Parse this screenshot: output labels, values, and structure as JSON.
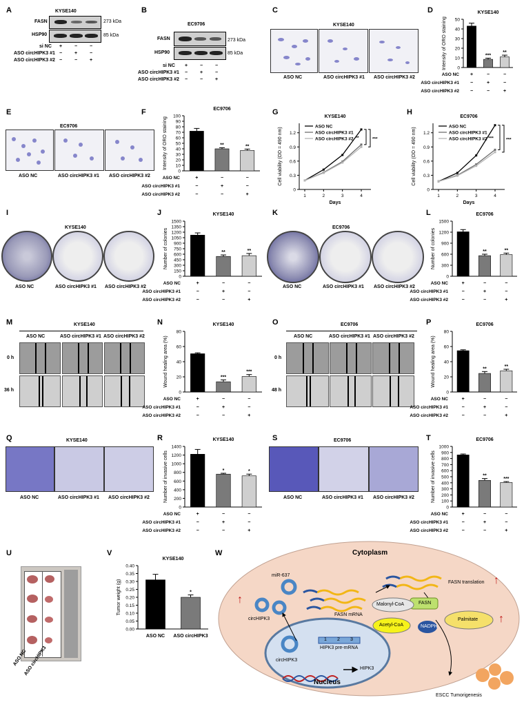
{
  "panels": {
    "A": {
      "letter": "A",
      "cell": "KYSE140",
      "rows": [
        "FASN",
        "HSP90"
      ],
      "kda": [
        "273 kDa",
        "85 kDa"
      ],
      "conds": [
        "si NC",
        "ASO circHIPK3 #1",
        "ASO circHIPK3 #2"
      ],
      "signs": [
        [
          "+",
          "−",
          "−"
        ],
        [
          "−",
          "+",
          "−"
        ],
        [
          "−",
          "−",
          "+"
        ]
      ]
    },
    "B": {
      "letter": "B",
      "cell": "EC9706",
      "rows": [
        "FASN",
        "HSP90"
      ],
      "kda": [
        "273 kDa",
        "85 kDa"
      ],
      "conds": [
        "si NC",
        "ASO circHIPK3 #1",
        "ASO circHIPK3 #2"
      ],
      "signs": [
        [
          "+",
          "−",
          "−"
        ],
        [
          "−",
          "+",
          "−"
        ],
        [
          "−",
          "−",
          "+"
        ]
      ]
    },
    "C": {
      "letter": "C",
      "cell": "KYSE140",
      "captions": [
        "ASO NC",
        "ASO circHIPK3 #1",
        "ASO circHIPK3 #2"
      ]
    },
    "E": {
      "letter": "E",
      "cell": "EC9706",
      "captions": [
        "ASO NC",
        "ASO circHIPK3 #1",
        "ASO circHIPK3 #2"
      ]
    },
    "I": {
      "letter": "I",
      "cell": "KYSE140",
      "captions": [
        "ASO NC",
        "ASO circHIPK3 #1",
        "ASO circHIPK3 #2"
      ]
    },
    "K": {
      "letter": "K",
      "cell": "EC9706",
      "captions": [
        "ASO NC",
        "ASO circHIPK3 #1",
        "ASO circHIPK3 #2"
      ]
    },
    "M": {
      "letter": "M",
      "cell": "KYSE140",
      "cols": [
        "ASO NC",
        "ASO circHIPK3 #1",
        "ASO circHIPK3 #2"
      ],
      "rows": [
        "0 h",
        "36 h"
      ]
    },
    "O": {
      "letter": "O",
      "cell": "EC9706",
      "cols": [
        "ASO NC",
        "ASO circHIPK3 #1",
        "ASO circHIPK3 #2"
      ],
      "rows": [
        "0 h",
        "48 h"
      ]
    },
    "Q": {
      "letter": "Q",
      "cell": "KYSE140",
      "captions": [
        "ASO NC",
        "ASO circHIPK3 #1",
        "ASO circHIPK3 #2"
      ]
    },
    "S": {
      "letter": "S",
      "cell": "EC9706",
      "captions": [
        "ASO NC",
        "ASO circHIPK3 #1",
        "ASO circHIPK3 #2"
      ]
    },
    "U": {
      "letter": "U",
      "captions": [
        "ASO NC",
        "ASO circHIPK3"
      ]
    },
    "W": {
      "letter": "W",
      "cytoplasm": "Cytoplasm",
      "nucleus": "Nucleus",
      "mir": "miR-637",
      "circ_cyto": "circHIPK3",
      "circ_nuc": "circHIPK3",
      "premrna": "HIPK3 pre-mRNA",
      "exons": [
        "1",
        "2",
        "3"
      ],
      "gene": "HIPK3",
      "fasn_mrna": "FASN mRNA",
      "translation": "FASN translation",
      "malonyl": "Malonyl-CoA",
      "fasn": "FASN",
      "acetyl": "Acetyl-CoA",
      "nadph": "NADPH",
      "palmitate": "Palmitate",
      "escc": "ESCC Tumorigenesis",
      "up_arrows": [
        "↑",
        "↑",
        "↑"
      ]
    }
  },
  "chart_data": [
    {
      "id": "D",
      "type": "bar",
      "title": "KYSE140",
      "ylabel": "Intensity of ORO staining",
      "ylim": [
        0,
        50
      ],
      "yticks": [
        0,
        10,
        20,
        30,
        40,
        50
      ],
      "categories": [
        "ASO NC",
        "ASO circHIPK3 #1",
        "ASO circHIPK3 #2"
      ],
      "values": [
        43,
        8.5,
        11
      ],
      "errors": [
        3,
        1.2,
        1.8
      ],
      "sig": [
        "",
        "***",
        "**"
      ],
      "colors": [
        "#000000",
        "#7a7a7a",
        "#cfcfcf"
      ],
      "conds": [
        "ASO NC",
        "ASO circHIPK3 #1",
        "ASO circHIPK3 #2"
      ],
      "signs": [
        [
          "+",
          "−",
          "−"
        ],
        [
          "−",
          "+",
          "−"
        ],
        [
          "−",
          "−",
          "+"
        ]
      ]
    },
    {
      "id": "F",
      "type": "bar",
      "title": "EC9706",
      "ylabel": "Intensity of ORO staining",
      "ylim": [
        0,
        100
      ],
      "yticks": [
        0,
        10,
        20,
        30,
        40,
        50,
        60,
        70,
        80,
        90,
        100
      ],
      "categories": [
        "ASO NC",
        "ASO circHIPK3 #1",
        "ASO circHIPK3 #2"
      ],
      "values": [
        72,
        40,
        37
      ],
      "errors": [
        5,
        2,
        2.5
      ],
      "sig": [
        "",
        "**",
        "**"
      ],
      "colors": [
        "#000000",
        "#7a7a7a",
        "#cfcfcf"
      ],
      "conds": [
        "ASO NC",
        "ASO circHIPK3 #1",
        "ASO circHIPK3 #2"
      ],
      "signs": [
        [
          "+",
          "−",
          "−"
        ],
        [
          "−",
          "+",
          "−"
        ],
        [
          "−",
          "−",
          "+"
        ]
      ]
    },
    {
      "id": "G",
      "type": "line",
      "title": "KYSE140",
      "xlabel": "Days",
      "ylabel": "Cell viability (OD = 490 nm)",
      "ylim": [
        0,
        1.4
      ],
      "yticks": [
        0,
        0.3,
        0.6,
        0.9,
        1.2
      ],
      "x": [
        1,
        2,
        3,
        4
      ],
      "series": [
        {
          "name": "ASO NC",
          "values": [
            0.19,
            0.42,
            0.73,
            1.27
          ],
          "color": "#000000"
        },
        {
          "name": "ASO circHIPK3 #1",
          "values": [
            0.19,
            0.36,
            0.59,
            0.95
          ],
          "color": "#6e6e6e"
        },
        {
          "name": "ASO circHIPK3 #2",
          "values": [
            0.19,
            0.35,
            0.57,
            0.9
          ],
          "color": "#b5b5b5"
        }
      ],
      "sig": [
        "**",
        "***"
      ]
    },
    {
      "id": "H",
      "type": "line",
      "title": "EC9706",
      "xlabel": "Days",
      "ylabel": "Cell viability (OD = 490 nm)",
      "ylim": [
        0,
        1.4
      ],
      "yticks": [
        0,
        0.3,
        0.6,
        0.9,
        1.2
      ],
      "x": [
        1,
        2,
        3,
        4
      ],
      "series": [
        {
          "name": "ASO NC",
          "values": [
            0.17,
            0.35,
            0.72,
            1.36
          ],
          "color": "#000000"
        },
        {
          "name": "ASO circHIPK3 #1",
          "values": [
            0.17,
            0.3,
            0.53,
            0.84
          ],
          "color": "#6e6e6e"
        },
        {
          "name": "ASO circHIPK3 #2",
          "values": [
            0.17,
            0.29,
            0.5,
            0.79
          ],
          "color": "#b5b5b5"
        }
      ],
      "sig": [
        "***",
        "***"
      ]
    },
    {
      "id": "J",
      "type": "bar",
      "title": "KYSE140",
      "ylabel": "Number of colonies",
      "ylim": [
        0,
        1500
      ],
      "yticks": [
        0,
        150,
        300,
        450,
        600,
        750,
        900,
        1050,
        1200,
        1350,
        1500
      ],
      "categories": [
        "ASO NC",
        "ASO circHIPK3 #1",
        "ASO circHIPK3 #2"
      ],
      "values": [
        1120,
        540,
        560
      ],
      "errors": [
        60,
        40,
        60
      ],
      "sig": [
        "",
        "**",
        "**"
      ],
      "colors": [
        "#000000",
        "#7a7a7a",
        "#cfcfcf"
      ],
      "conds": [
        "ASO NC",
        "ASO circHIPK3 #1",
        "ASO circHIPK3 #2"
      ],
      "signs": [
        [
          "+",
          "−",
          "−"
        ],
        [
          "−",
          "+",
          "−"
        ],
        [
          "−",
          "−",
          "+"
        ]
      ]
    },
    {
      "id": "L",
      "type": "bar",
      "title": "EC9706",
      "ylabel": "Number of colonies",
      "ylim": [
        0,
        1500
      ],
      "yticks": [
        0,
        300,
        600,
        900,
        1200,
        1500
      ],
      "categories": [
        "ASO NC",
        "ASO circHIPK3 #1",
        "ASO circHIPK3 #2"
      ],
      "values": [
        1210,
        560,
        590
      ],
      "errors": [
        60,
        40,
        40
      ],
      "sig": [
        "",
        "**",
        "**"
      ],
      "colors": [
        "#000000",
        "#7a7a7a",
        "#cfcfcf"
      ],
      "conds": [
        "ASO NC",
        "ASO circHIPK3 #1",
        "ASO circHIPK3 #2"
      ],
      "signs": [
        [
          "+",
          "−",
          "−"
        ],
        [
          "−",
          "+",
          "−"
        ],
        [
          "−",
          "−",
          "+"
        ]
      ]
    },
    {
      "id": "N",
      "type": "bar",
      "title": "KYSE140",
      "ylabel": "Wound healing area (%)",
      "ylim": [
        0,
        80
      ],
      "yticks": [
        0,
        20,
        40,
        60,
        80
      ],
      "categories": [
        "ASO NC",
        "ASO circHIPK3 #1",
        "ASO circHIPK3 #2"
      ],
      "values": [
        50.5,
        13.5,
        20.5
      ],
      "errors": [
        1.2,
        2.5,
        2.5
      ],
      "sig": [
        "",
        "***",
        "***"
      ],
      "colors": [
        "#000000",
        "#7a7a7a",
        "#cfcfcf"
      ],
      "conds": [
        "ASO NC",
        "ASO circHIPK3 #1",
        "ASO circHIPK3 #2"
      ],
      "signs": [
        [
          "+",
          "−",
          "−"
        ],
        [
          "−",
          "+",
          "−"
        ],
        [
          "−",
          "−",
          "+"
        ]
      ]
    },
    {
      "id": "P",
      "type": "bar",
      "title": "EC9706",
      "ylabel": "Wound healing area (%)",
      "ylim": [
        0,
        80
      ],
      "yticks": [
        0,
        20,
        40,
        60,
        80
      ],
      "categories": [
        "ASO NC",
        "ASO circHIPK3 #1",
        "ASO circHIPK3 #2"
      ],
      "values": [
        54.5,
        24.5,
        28
      ],
      "errors": [
        1.2,
        2.5,
        2
      ],
      "sig": [
        "",
        "**",
        "**"
      ],
      "colors": [
        "#000000",
        "#7a7a7a",
        "#cfcfcf"
      ],
      "conds": [
        "ASO NC",
        "ASO circHIPK3 #1",
        "ASO circHIPK3 #2"
      ],
      "signs": [
        [
          "+",
          "−",
          "−"
        ],
        [
          "−",
          "+",
          "−"
        ],
        [
          "−",
          "−",
          "+"
        ]
      ]
    },
    {
      "id": "R",
      "type": "bar",
      "title": "KYSE140",
      "ylabel": "Number of invasive cells",
      "ylim": [
        0,
        1400
      ],
      "yticks": [
        0,
        200,
        400,
        600,
        800,
        1000,
        1200,
        1400
      ],
      "categories": [
        "ASO NC",
        "ASO circHIPK3 #1",
        "ASO circHIPK3 #2"
      ],
      "values": [
        1220,
        760,
        720
      ],
      "errors": [
        110,
        20,
        40
      ],
      "sig": [
        "",
        "*",
        "*"
      ],
      "colors": [
        "#000000",
        "#7a7a7a",
        "#cfcfcf"
      ],
      "conds": [
        "ASO NC",
        "ASO circHIPK3 #1",
        "ASO circHIPK3 #2"
      ],
      "signs": [
        [
          "+",
          "−",
          "−"
        ],
        [
          "−",
          "+",
          "−"
        ],
        [
          "−",
          "−",
          "+"
        ]
      ]
    },
    {
      "id": "T",
      "type": "bar",
      "title": "EC9706",
      "ylabel": "Number of invasive cells",
      "ylim": [
        0,
        1000
      ],
      "yticks": [
        0,
        100,
        200,
        300,
        400,
        500,
        600,
        700,
        800,
        900,
        1000
      ],
      "categories": [
        "ASO NC",
        "ASO circHIPK3 #1",
        "ASO circHIPK3 #2"
      ],
      "values": [
        860,
        440,
        405
      ],
      "errors": [
        15,
        30,
        15
      ],
      "sig": [
        "",
        "**",
        "***"
      ],
      "colors": [
        "#000000",
        "#7a7a7a",
        "#cfcfcf"
      ],
      "conds": [
        "ASO NC",
        "ASO circHIPK3 #1",
        "ASO circHIPK3 #2"
      ],
      "signs": [
        [
          "+",
          "−",
          "−"
        ],
        [
          "−",
          "+",
          "−"
        ],
        [
          "−",
          "−",
          "+"
        ]
      ]
    },
    {
      "id": "V",
      "type": "bar",
      "title": "KYSE140",
      "ylabel": "Tumor weight (g)",
      "ylim": [
        0,
        0.4
      ],
      "yticks": [
        0,
        0.05,
        0.1,
        0.15,
        0.2,
        0.25,
        0.3,
        0.35,
        0.4
      ],
      "ytick_labels": [
        "0.00",
        "0.05",
        "0.10",
        "0.15",
        "0.20",
        "0.25",
        "0.30",
        "0.35",
        "0.40"
      ],
      "categories": [
        "ASO NC",
        "ASO circHIPK3"
      ],
      "values": [
        0.31,
        0.2
      ],
      "errors": [
        0.035,
        0.015
      ],
      "sig": [
        "",
        "*"
      ],
      "colors": [
        "#000000",
        "#7a7a7a"
      ]
    }
  ]
}
